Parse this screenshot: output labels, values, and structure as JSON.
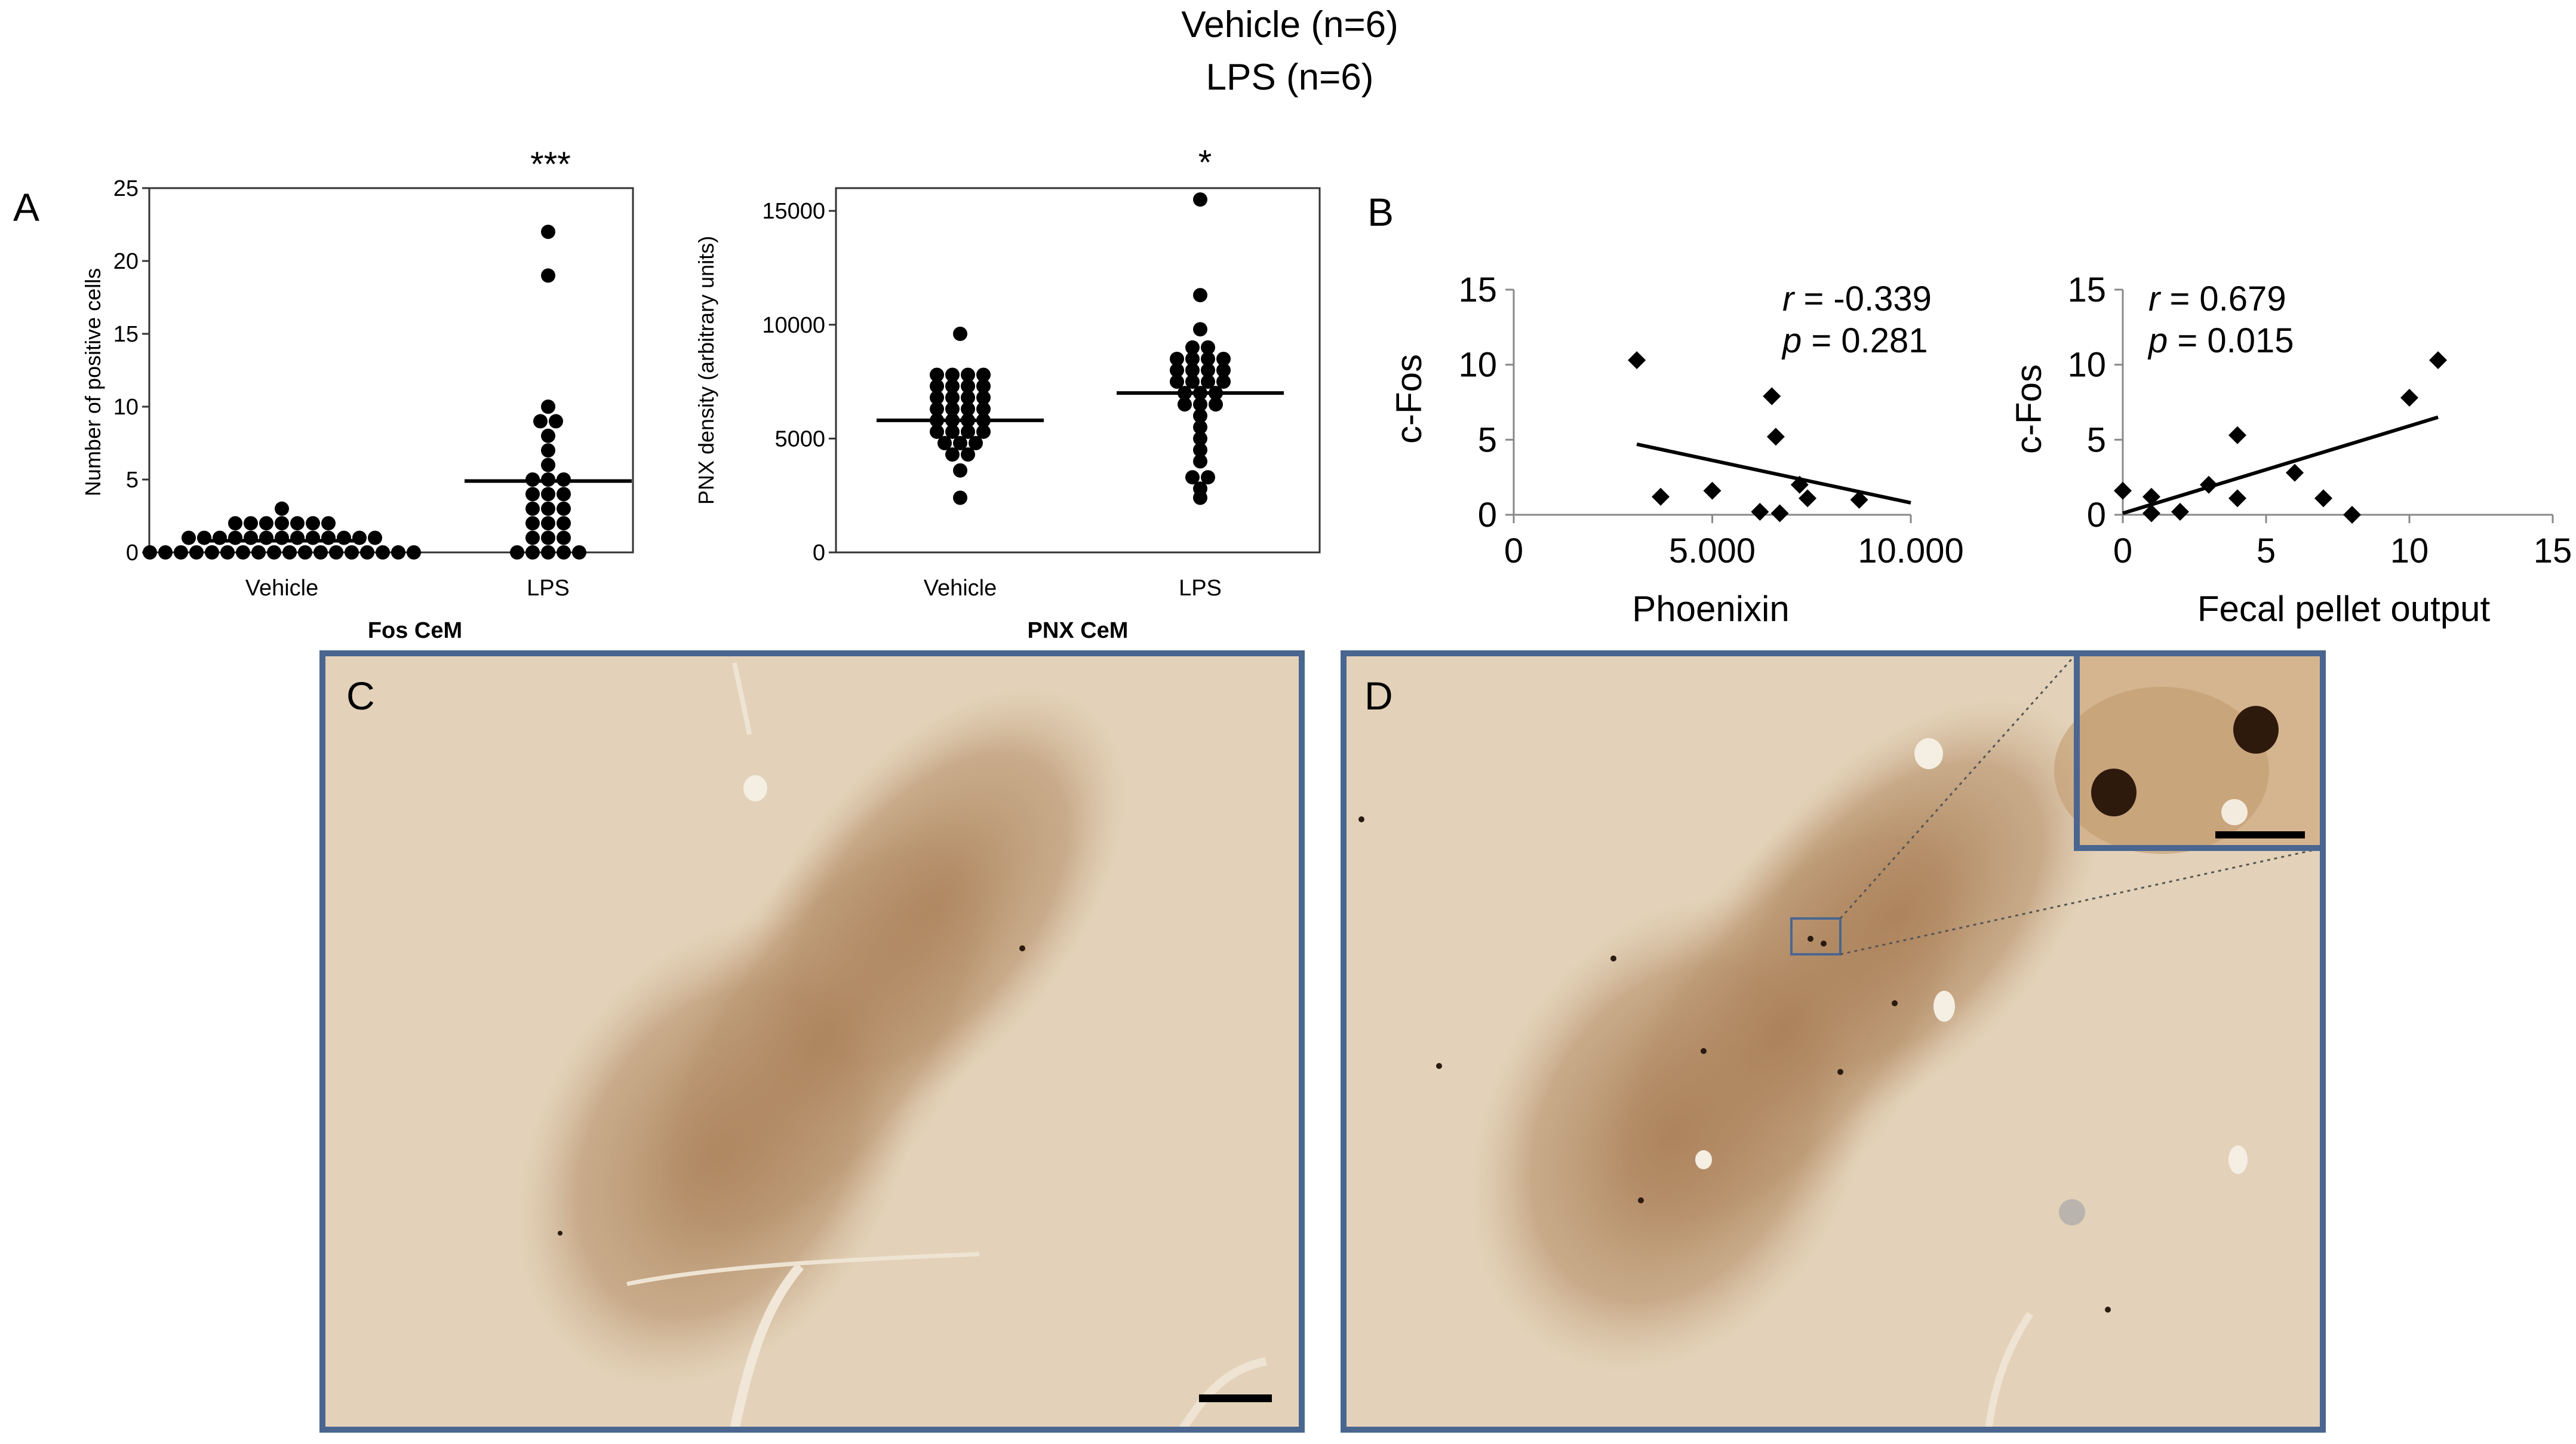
{
  "header": {
    "legend_line1": "Vehicle (n=6)",
    "legend_line2": "LPS (n=6)"
  },
  "panel_labels": {
    "a": "A",
    "b": "B",
    "c": "C",
    "d": "D"
  },
  "colors": {
    "frame": "#4a6690",
    "tissue": "#e3d2b9",
    "stain": "#a87e56",
    "marker": "#000000"
  },
  "chart_data": [
    {
      "id": "fos",
      "type": "scatter",
      "subtitle": "Fos CeM",
      "ylabel": "Number of positive cells",
      "categories": [
        "Vehicle",
        "LPS"
      ],
      "ylim": [
        0,
        25
      ],
      "yticks": [
        0,
        5,
        10,
        15,
        20,
        25
      ],
      "significance": "***",
      "series": [
        {
          "category": "Vehicle",
          "mean": 0.8,
          "values": [
            0,
            0,
            0,
            0,
            0,
            0,
            0,
            0,
            0,
            0,
            0,
            0,
            0,
            0,
            0,
            0,
            0,
            0,
            1,
            1,
            1,
            1,
            1,
            1,
            1,
            1,
            1,
            1,
            1,
            1,
            1,
            2,
            2,
            2,
            2,
            2,
            2,
            2,
            3
          ]
        },
        {
          "category": "LPS",
          "mean": 4.9,
          "values": [
            22,
            19,
            10,
            9,
            9,
            8,
            7,
            6,
            5,
            5,
            5,
            4,
            4,
            4,
            3,
            3,
            3,
            2,
            2,
            2,
            1,
            1,
            1,
            0,
            0,
            0,
            0,
            0
          ]
        }
      ]
    },
    {
      "id": "pnx",
      "type": "scatter",
      "subtitle": "PNX CeM",
      "ylabel": "PNX density (arbitrary units)",
      "categories": [
        "Vehicle",
        "LPS"
      ],
      "ylim": [
        0,
        16000
      ],
      "yticks": [
        0,
        5000,
        10000,
        15000
      ],
      "significance": "*",
      "series": [
        {
          "category": "Vehicle",
          "mean": 5800,
          "values": [
            9600,
            7800,
            7800,
            7800,
            7800,
            7300,
            7300,
            7300,
            7300,
            6800,
            6800,
            6800,
            6800,
            6300,
            6300,
            6300,
            6300,
            5800,
            5800,
            5800,
            5800,
            5300,
            5300,
            5300,
            5300,
            4800,
            4800,
            4800,
            4300,
            4300,
            3600,
            2400
          ]
        },
        {
          "category": "LPS",
          "mean": 7000,
          "values": [
            15500,
            11300,
            9800,
            9000,
            9000,
            8500,
            8500,
            8500,
            8500,
            8000,
            8000,
            8000,
            8000,
            7500,
            7500,
            7500,
            7500,
            7000,
            7000,
            7000,
            6500,
            6500,
            6500,
            6000,
            5500,
            5000,
            4500,
            4000,
            3300,
            3300,
            2800,
            2400
          ]
        }
      ]
    },
    {
      "id": "phoenixin",
      "type": "scatter",
      "xlabel": "Phoenixin",
      "ylabel": "c-Fos",
      "xlim": [
        0,
        10000
      ],
      "ylim": [
        0,
        15
      ],
      "xticks": [
        0,
        5000,
        10000
      ],
      "xtick_labels": [
        "0",
        "5.000",
        "10.000"
      ],
      "yticks": [
        0,
        5,
        10,
        15
      ],
      "stats": {
        "r_label": "r",
        "r_text": " = -0.339",
        "p_label": "p",
        "p_text": " = 0.281"
      },
      "points": [
        {
          "x": 3100,
          "y": 10.3
        },
        {
          "x": 3700,
          "y": 1.2
        },
        {
          "x": 5000,
          "y": 1.6
        },
        {
          "x": 6200,
          "y": 0.2
        },
        {
          "x": 6500,
          "y": 7.9
        },
        {
          "x": 6600,
          "y": 5.2
        },
        {
          "x": 6700,
          "y": 0.1
        },
        {
          "x": 7200,
          "y": 2.0
        },
        {
          "x": 7400,
          "y": 1.1
        },
        {
          "x": 8700,
          "y": 1.0
        }
      ],
      "trendline": {
        "x1": 3100,
        "y1": 4.7,
        "x2": 10000,
        "y2": 0.8
      }
    },
    {
      "id": "fecal",
      "type": "scatter",
      "xlabel": "Fecal pellet output",
      "ylabel": "c-Fos",
      "xlim": [
        0,
        15
      ],
      "ylim": [
        0,
        15
      ],
      "xticks": [
        0,
        5,
        10,
        15
      ],
      "yticks": [
        0,
        5,
        10,
        15
      ],
      "stats": {
        "r_label": "r",
        "r_text": " = 0.679",
        "p_label": "p",
        "p_text": " = 0.015"
      },
      "points": [
        {
          "x": 0,
          "y": 1.6
        },
        {
          "x": 1,
          "y": 1.2
        },
        {
          "x": 1,
          "y": 0.1
        },
        {
          "x": 2,
          "y": 0.2
        },
        {
          "x": 3,
          "y": 2.0
        },
        {
          "x": 4,
          "y": 5.3
        },
        {
          "x": 4,
          "y": 1.1
        },
        {
          "x": 6,
          "y": 2.8
        },
        {
          "x": 7,
          "y": 1.1
        },
        {
          "x": 8,
          "y": 0.0
        },
        {
          "x": 10,
          "y": 7.8
        },
        {
          "x": 11,
          "y": 10.3
        }
      ],
      "trendline": {
        "x1": 0,
        "y1": 0.1,
        "x2": 11,
        "y2": 6.5
      }
    }
  ]
}
